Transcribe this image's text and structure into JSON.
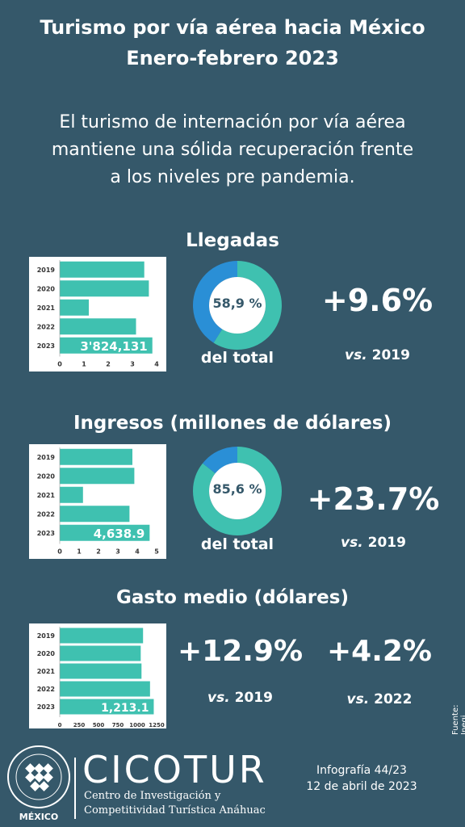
{
  "header": {
    "title_line1": "Turismo por vía aérea hacia México",
    "title_line2": "Enero-febrero 2023",
    "subtitle_line1": "El turismo de internación por vía aérea",
    "subtitle_line2": "mantiene una sólida recuperación frente",
    "subtitle_line3": "a los niveles pre pandemia."
  },
  "sections": {
    "llegadas": {
      "title": "Llegadas",
      "donut_label": "58,9 %",
      "donut_caption": "del total",
      "change": "+9.6%",
      "vs_prefix": "vs.",
      "vs_year": " 2019"
    },
    "ingresos": {
      "title": "Ingresos (millones de dólares)",
      "donut_label": "85,6 %",
      "donut_caption": "del total",
      "change": "+23.7%",
      "vs_prefix": "vs.",
      "vs_year": " 2019"
    },
    "gasto": {
      "title": "Gasto medio (dólares)",
      "change_2019": "+12.9%",
      "vs_prefix_2019": "vs.",
      "vs_year_2019": " 2019",
      "change_2022": "+4.2%",
      "vs_prefix_2022": "vs.",
      "vs_year_2022": " 2022"
    }
  },
  "chart_data": [
    {
      "type": "bar",
      "orientation": "horizontal",
      "categories": [
        "2019",
        "2020",
        "2021",
        "2022",
        "2023"
      ],
      "values": [
        3.49,
        3.68,
        1.2,
        3.15,
        3.824131
      ],
      "value_label_2023": "3'824,131",
      "xticks": [
        "0",
        "1",
        "2",
        "3",
        "4"
      ],
      "xlim": [
        0,
        4
      ],
      "bar_color": "#3fc1b0"
    },
    {
      "type": "bar",
      "orientation": "horizontal",
      "categories": [
        "2019",
        "2020",
        "2021",
        "2022",
        "2023"
      ],
      "values": [
        3.75,
        3.85,
        1.2,
        3.6,
        4.6389
      ],
      "value_label_2023": "4,638.9",
      "xticks": [
        "0",
        "1",
        "2",
        "3",
        "4",
        "5"
      ],
      "xlim": [
        0,
        5
      ],
      "bar_color": "#3fc1b0"
    },
    {
      "type": "bar",
      "orientation": "horizontal",
      "categories": [
        "2019",
        "2020",
        "2021",
        "2022",
        "2023"
      ],
      "values": [
        1075,
        1045,
        1055,
        1165,
        1213.1
      ],
      "value_label_2023": "1,213.1",
      "xticks": [
        "0",
        "250",
        "500",
        "750",
        "1000",
        "1250"
      ],
      "xlim": [
        0,
        1250
      ],
      "bar_color": "#3fc1b0"
    },
    {
      "type": "pie",
      "variant": "donut",
      "values": [
        58.9,
        41.1
      ],
      "colors": [
        "#3fc1b0",
        "#2a8fd6"
      ]
    },
    {
      "type": "pie",
      "variant": "donut",
      "values": [
        85.6,
        14.4
      ],
      "colors": [
        "#3fc1b0",
        "#2a8fd6"
      ]
    }
  ],
  "footer": {
    "logo_ring_text": "UNIVERSIDAD ANÁHUAC · VINCE IN BONO MALUM",
    "logo_country": "MÉXICO",
    "brand": "CICOTUR",
    "brand_line1": "Centro de Investigación y",
    "brand_line2": "Competitividad Turística Anáhuac",
    "infografia": "Infografía 44/23",
    "date": "12 de abril de 2023",
    "source": "Fuente: Inegi"
  },
  "colors": {
    "background": "#35586a",
    "bar": "#3fc1b0",
    "donut_main": "#3fc1b0",
    "donut_secondary": "#2a8fd6",
    "chart_panel": "#ffffff"
  }
}
